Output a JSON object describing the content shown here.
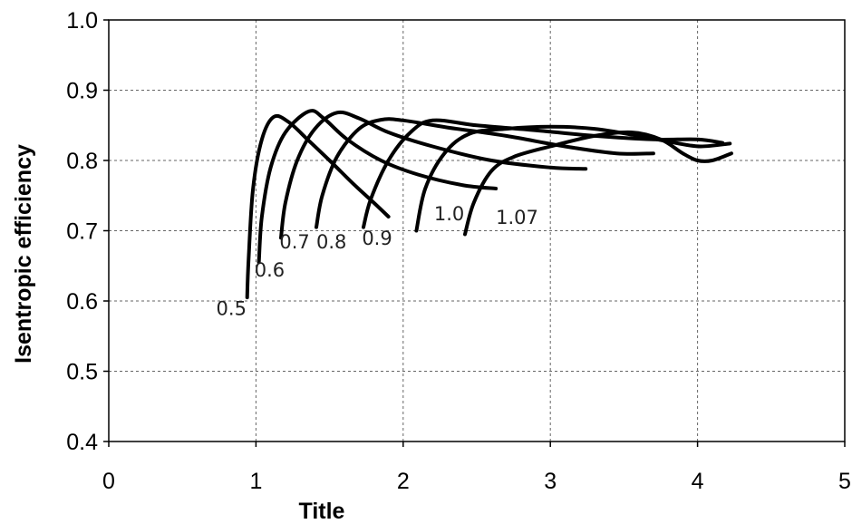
{
  "chart_data": {
    "type": "line",
    "title": "",
    "xlabel": "Title",
    "ylabel": "Isentropic efficiency",
    "xlim": [
      0,
      5
    ],
    "ylim": [
      0.4,
      1.0
    ],
    "x_ticks": [
      "0",
      "1",
      "2",
      "3",
      "4",
      "5"
    ],
    "y_ticks": [
      "0.4",
      "0.5",
      "0.6",
      "0.7",
      "0.8",
      "0.9",
      "1.0"
    ],
    "grid": true,
    "legend": "none",
    "line_color": "#000000",
    "series": [
      {
        "label": "0.5",
        "points": [
          [
            0.94,
            0.605
          ],
          [
            0.95,
            0.66
          ],
          [
            0.98,
            0.76
          ],
          [
            1.04,
            0.83
          ],
          [
            1.12,
            0.862
          ],
          [
            1.22,
            0.855
          ],
          [
            1.35,
            0.83
          ],
          [
            1.5,
            0.8
          ],
          [
            1.67,
            0.765
          ],
          [
            1.8,
            0.74
          ],
          [
            1.9,
            0.72
          ]
        ]
      },
      {
        "label": "0.6",
        "points": [
          [
            1.02,
            0.655
          ],
          [
            1.04,
            0.72
          ],
          [
            1.1,
            0.79
          ],
          [
            1.2,
            0.84
          ],
          [
            1.36,
            0.87
          ],
          [
            1.46,
            0.86
          ],
          [
            1.62,
            0.83
          ],
          [
            1.85,
            0.8
          ],
          [
            2.1,
            0.78
          ],
          [
            2.4,
            0.765
          ],
          [
            2.63,
            0.76
          ]
        ]
      },
      {
        "label": "0.7",
        "points": [
          [
            1.17,
            0.69
          ],
          [
            1.2,
            0.74
          ],
          [
            1.28,
            0.8
          ],
          [
            1.4,
            0.845
          ],
          [
            1.55,
            0.868
          ],
          [
            1.7,
            0.86
          ],
          [
            1.9,
            0.84
          ],
          [
            2.2,
            0.82
          ],
          [
            2.6,
            0.8
          ],
          [
            3.0,
            0.79
          ],
          [
            3.24,
            0.788
          ]
        ]
      },
      {
        "label": "0.8",
        "points": [
          [
            1.41,
            0.705
          ],
          [
            1.45,
            0.75
          ],
          [
            1.55,
            0.805
          ],
          [
            1.7,
            0.845
          ],
          [
            1.85,
            0.858
          ],
          [
            2.0,
            0.857
          ],
          [
            2.3,
            0.847
          ],
          [
            2.7,
            0.835
          ],
          [
            3.1,
            0.82
          ],
          [
            3.45,
            0.81
          ],
          [
            3.7,
            0.81
          ]
        ]
      },
      {
        "label": "0.9",
        "points": [
          [
            1.73,
            0.705
          ],
          [
            1.78,
            0.745
          ],
          [
            1.9,
            0.8
          ],
          [
            2.05,
            0.84
          ],
          [
            2.2,
            0.857
          ],
          [
            2.5,
            0.85
          ],
          [
            2.9,
            0.843
          ],
          [
            3.3,
            0.835
          ],
          [
            3.7,
            0.83
          ],
          [
            4.0,
            0.83
          ],
          [
            4.17,
            0.825
          ]
        ]
      },
      {
        "label": "1.0",
        "points": [
          [
            2.09,
            0.7
          ],
          [
            2.15,
            0.76
          ],
          [
            2.28,
            0.81
          ],
          [
            2.45,
            0.838
          ],
          [
            2.7,
            0.845
          ],
          [
            3.0,
            0.848
          ],
          [
            3.3,
            0.845
          ],
          [
            3.6,
            0.835
          ],
          [
            3.85,
            0.825
          ],
          [
            4.02,
            0.82
          ],
          [
            4.22,
            0.824
          ]
        ]
      },
      {
        "label": "1.07",
        "points": [
          [
            2.42,
            0.695
          ],
          [
            2.48,
            0.74
          ],
          [
            2.6,
            0.785
          ],
          [
            2.75,
            0.805
          ],
          [
            3.0,
            0.82
          ],
          [
            3.3,
            0.835
          ],
          [
            3.55,
            0.84
          ],
          [
            3.75,
            0.83
          ],
          [
            3.9,
            0.81
          ],
          [
            4.0,
            0.8
          ],
          [
            4.1,
            0.8
          ],
          [
            4.23,
            0.81
          ]
        ]
      }
    ],
    "annotations": [
      {
        "text": "0.5",
        "x": 0.73,
        "y": 0.58
      },
      {
        "text": "0.6",
        "x": 0.99,
        "y": 0.635
      },
      {
        "text": "0.7",
        "x": 1.16,
        "y": 0.675
      },
      {
        "text": "0.8",
        "x": 1.41,
        "y": 0.675
      },
      {
        "text": "0.9",
        "x": 1.72,
        "y": 0.68
      },
      {
        "text": "1.0",
        "x": 2.21,
        "y": 0.715
      },
      {
        "text": "1.07",
        "x": 2.63,
        "y": 0.71
      }
    ]
  }
}
